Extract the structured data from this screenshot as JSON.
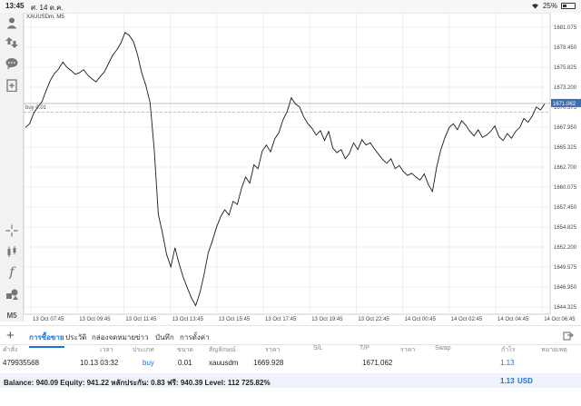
{
  "status": {
    "time": "13:45",
    "date": "ศ. 14 ต.ค.",
    "battery": "25%",
    "battery_level": 0.25
  },
  "chart": {
    "symbol": "XAUUSDm, M5",
    "buy_line_label": "buy 0.01",
    "current_price": "1671.062",
    "x_labels": [
      "13 Oct 07:45",
      "13 Oct 09:45",
      "13 Oct 11:45",
      "13 Oct 13:45",
      "13 Oct 15:45",
      "13 Oct 17:45",
      "13 Oct 19:45",
      "13 Oct 22:45",
      "14 Oct 00:45",
      "14 Oct 02:45",
      "14 Oct 04:45",
      "14 Oct 06:45"
    ],
    "y_labels": [
      "1681.075",
      "1678.450",
      "1675.825",
      "1673.200",
      "1670.575",
      "1667.950",
      "1665.325",
      "1662.700",
      "1660.075",
      "1657.450",
      "1654.825",
      "1652.200",
      "1649.575",
      "1646.950",
      "1644.325"
    ]
  },
  "chart_data": {
    "type": "line",
    "title": "XAUUSDm, M5",
    "ylim": [
      1642.0,
      1682.5
    ],
    "buy_level": 1669.928,
    "price_level": 1671.062,
    "y": [
      1667.9,
      1668.4,
      1669.8,
      1670.6,
      1671.3,
      1672.8,
      1674.1,
      1675.0,
      1675.6,
      1676.5,
      1675.8,
      1675.4,
      1674.9,
      1675.1,
      1675.5,
      1674.8,
      1674.3,
      1673.9,
      1674.6,
      1675.2,
      1676.3,
      1677.4,
      1678.1,
      1679.0,
      1680.4,
      1680.0,
      1679.2,
      1677.4,
      1675.1,
      1673.4,
      1671.2,
      1665.0,
      1656.5,
      1654.0,
      1651.2,
      1649.6,
      1652.1,
      1650.0,
      1648.2,
      1646.8,
      1645.5,
      1644.5,
      1646.2,
      1648.6,
      1651.4,
      1653.0,
      1654.8,
      1656.2,
      1657.1,
      1656.4,
      1658.2,
      1657.8,
      1659.9,
      1661.4,
      1660.6,
      1663.0,
      1662.5,
      1664.8,
      1665.6,
      1664.7,
      1666.4,
      1667.2,
      1668.9,
      1670.0,
      1671.8,
      1671.0,
      1670.6,
      1669.3,
      1668.4,
      1667.8,
      1666.9,
      1667.5,
      1666.2,
      1667.4,
      1665.2,
      1664.6,
      1665.0,
      1663.8,
      1664.5,
      1665.9,
      1665.0,
      1666.3,
      1665.6,
      1665.9,
      1665.1,
      1664.4,
      1663.7,
      1663.2,
      1663.8,
      1662.5,
      1662.9,
      1662.1,
      1661.6,
      1661.9,
      1661.4,
      1661.0,
      1661.8,
      1660.4,
      1659.5,
      1662.7,
      1665.0,
      1666.6,
      1667.9,
      1668.4,
      1667.6,
      1668.8,
      1668.2,
      1667.4,
      1666.8,
      1667.6,
      1666.6,
      1666.9,
      1667.4,
      1668.1,
      1666.7,
      1666.2,
      1667.1,
      1666.5,
      1667.4,
      1667.9,
      1669.1,
      1668.6,
      1669.4,
      1670.6,
      1670.2,
      1671.0
    ]
  },
  "tabs": [
    {
      "label": "การซื้อขาย",
      "active": true
    },
    {
      "label": "ประวัติ",
      "active": false
    },
    {
      "label": "กล่องจดหมาย",
      "active": false
    },
    {
      "label": "ข่าว",
      "active": false
    },
    {
      "label": "บันทึก",
      "active": false
    },
    {
      "label": "การตั้งค่า",
      "active": false
    }
  ],
  "table": {
    "headers": {
      "order": "คำสั่ง",
      "time": "เวลา",
      "type": "ประเภท",
      "size": "ขนาด",
      "symbol": "สัญลักษณ์",
      "price": "ราคา",
      "sl": "S/L",
      "tp": "T/P",
      "cur_price": "ราคา",
      "swap": "Swap",
      "profit": "กำไร",
      "comment": "หมายเหตุ"
    },
    "row": {
      "order": "479935568",
      "time": "10.13 03:32",
      "type": "buy",
      "size": "0.01",
      "symbol": "xauusdm",
      "price": "1669.928",
      "sl": "",
      "tp": "",
      "cur_price": "1671.062",
      "swap": "",
      "profit": "1.13",
      "comment": ""
    }
  },
  "balance": {
    "text": "Balance: 940.09 Equity: 941.22 หลักประกัน: 0.83 ฟรี: 940.39 Level: 112 725.82%",
    "profit": "1.13",
    "currency": "USD"
  },
  "toolbar": {
    "timeframe": "M5"
  },
  "colors": {
    "accent": "#1e6fd9",
    "price_line": "#1a1a1a",
    "grid": "#e6e6e6",
    "current_price_bg": "#3f6fb2"
  }
}
